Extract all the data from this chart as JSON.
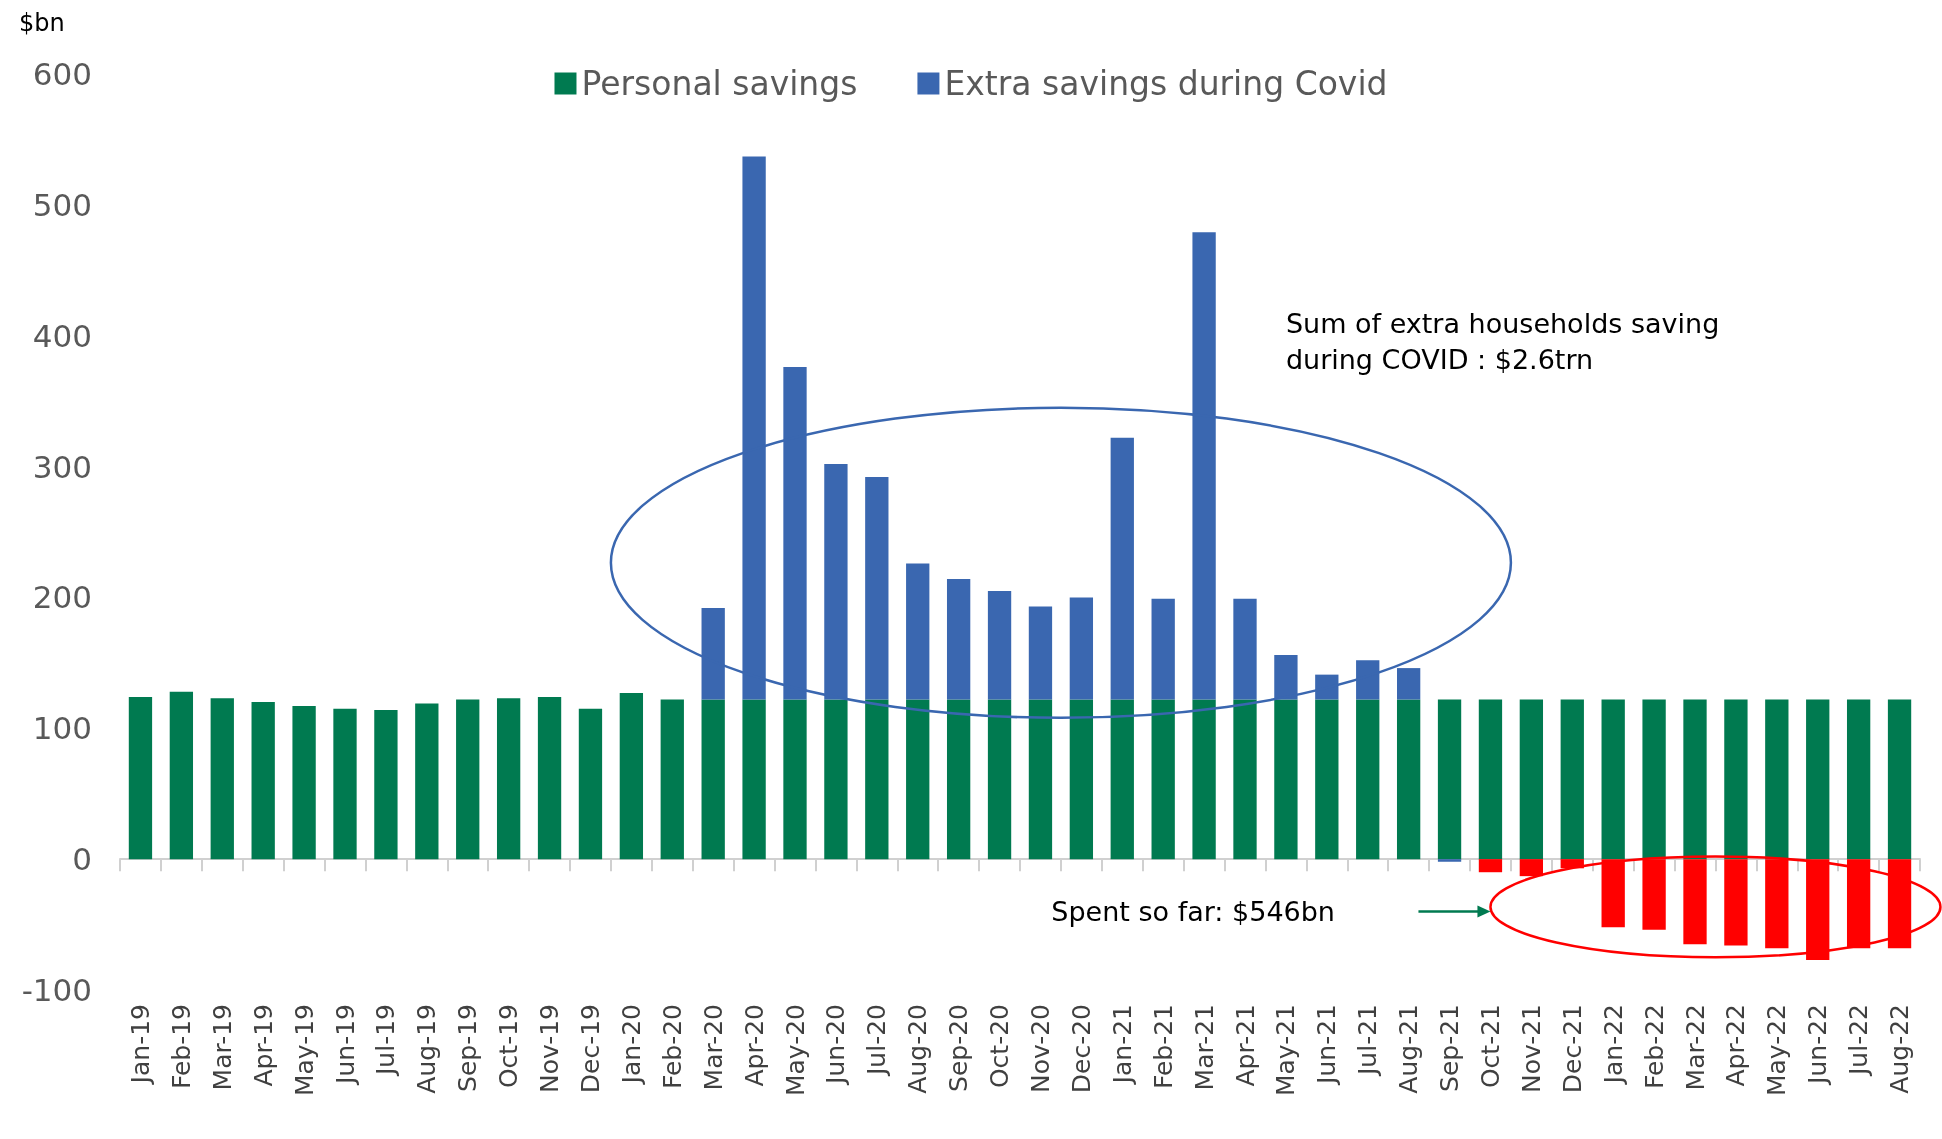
{
  "chart_data": {
    "type": "bar",
    "stacked": true,
    "ylabel": "$bn",
    "categories": [
      "Jan-19",
      "Feb-19",
      "Mar-19",
      "Apr-19",
      "May-19",
      "Jun-19",
      "Jul-19",
      "Aug-19",
      "Sep-19",
      "Oct-19",
      "Nov-19",
      "Dec-19",
      "Jan-20",
      "Feb-20",
      "Mar-20",
      "Apr-20",
      "May-20",
      "Jun-20",
      "Jul-20",
      "Aug-20",
      "Sep-20",
      "Oct-20",
      "Nov-20",
      "Dec-20",
      "Jan-21",
      "Feb-21",
      "Mar-21",
      "Apr-21",
      "May-21",
      "Jun-21",
      "Jul-21",
      "Aug-21",
      "Sep-21",
      "Oct-21",
      "Nov-21",
      "Dec-21",
      "Jan-22",
      "Feb-22",
      "Mar-22",
      "Apr-22",
      "May-22",
      "Jun-22",
      "Jul-22",
      "Aug-22"
    ],
    "series": [
      {
        "name": "Personal savings",
        "color": "#007a50",
        "values": [
          124,
          128,
          123,
          120,
          117,
          115,
          114,
          119,
          122,
          123,
          124,
          115,
          127,
          122,
          122,
          122,
          122,
          122,
          122,
          122,
          122,
          122,
          122,
          122,
          122,
          122,
          122,
          122,
          122,
          122,
          122,
          122,
          122,
          122,
          122,
          122,
          122,
          122,
          122,
          122,
          122,
          122,
          122,
          122
        ]
      },
      {
        "name": "Extra savings during Covid",
        "color": "#3a67b0",
        "colors": [
          "#3a67b0",
          "#3a67b0",
          "#3a67b0",
          "#3a67b0",
          "#3a67b0",
          "#3a67b0",
          "#3a67b0",
          "#3a67b0",
          "#3a67b0",
          "#3a67b0",
          "#3a67b0",
          "#3a67b0",
          "#3a67b0",
          "#3a67b0",
          "#3a67b0",
          "#3a67b0",
          "#3a67b0",
          "#3a67b0",
          "#3a67b0",
          "#3a67b0",
          "#3a67b0",
          "#3a67b0",
          "#3a67b0",
          "#3a67b0",
          "#3a67b0",
          "#3a67b0",
          "#3a67b0",
          "#3a67b0",
          "#3a67b0",
          "#3a67b0",
          "#3a67b0",
          "#3a67b0",
          "#3a67b0",
          "#ff0000",
          "#ff0000",
          "#ff0000",
          "#ff0000",
          "#ff0000",
          "#ff0000",
          "#ff0000",
          "#ff0000",
          "#ff0000",
          "#ff0000",
          "#ff0000"
        ],
        "values": [
          null,
          null,
          null,
          null,
          null,
          null,
          null,
          null,
          null,
          null,
          null,
          null,
          null,
          null,
          70,
          415,
          254,
          180,
          170,
          104,
          92,
          83,
          71,
          78,
          200,
          77,
          357,
          77,
          34,
          19,
          30,
          24,
          -2,
          -10,
          -13,
          -7,
          -52,
          -54,
          -65,
          -66,
          -68,
          -77,
          -68,
          -68
        ]
      }
    ],
    "ylim": [
      -100,
      600
    ],
    "yticks": [
      -100,
      0,
      100,
      200,
      300,
      400,
      500,
      600
    ],
    "legend": "top",
    "annotations": [
      "Sum of extra households saving during COVID : $2.6trn",
      "Spent so far: $546bn"
    ]
  }
}
